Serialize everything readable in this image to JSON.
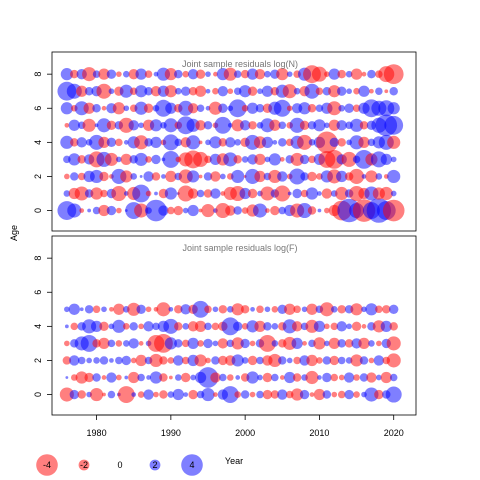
{
  "chart_data": {
    "type": "scatter",
    "subtype": "bubble",
    "shared_axes": {
      "ylabel": "Age",
      "xlabel": "Year",
      "xlim": [
        1974,
        2023
      ],
      "xticks": [
        1980,
        1990,
        2000,
        2010,
        2020
      ],
      "ylim": [
        -1.2,
        9.3
      ],
      "yticks": [
        0,
        2,
        4,
        6,
        8
      ],
      "grid": false
    },
    "colors": {
      "positive": "#0000ff",
      "negative": "#ff0000",
      "fill_opacity": 0.5
    },
    "legend": {
      "placement": "bottom-left",
      "entries": [
        {
          "label": "-4",
          "value": -4
        },
        {
          "label": "-2",
          "value": -2
        },
        {
          "label": "0",
          "value": 0
        },
        {
          "label": "2",
          "value": 2
        },
        {
          "label": "4",
          "value": 4
        }
      ]
    },
    "panels": [
      {
        "title": "Joint sample residuals log(N)",
        "x_start": 1976,
        "ages": [
          0,
          1,
          2,
          3,
          4,
          5,
          6,
          7,
          8
        ],
        "residuals_by_age": {
          "0": [
            2,
            1.5,
            -0.5,
            0.4,
            0.8,
            -1.2,
            1.0,
            -0.6,
            0.3,
            1.8,
            -1.5,
            0.7,
            2.3,
            1.1,
            -0.8,
            -1.0,
            0.6,
            1.2,
            -0.4,
            -1.4,
            0.5,
            -1.6,
            -1.1,
            0.9,
            -0.7,
            -1.3,
            1.5,
            -0.5,
            -1.0,
            0.8,
            1.2,
            -1.5,
            1.6,
            -0.9,
            0.4,
            -0.6,
            -1.2,
            -2.1,
            2.5,
            1.6,
            -2.4,
            1.8,
            2.6,
            2.0,
            -2.3
          ],
          "1": [
            0.7,
            -1.2,
            -1.5,
            0.9,
            -1.3,
            -0.8,
            1.0,
            -1.6,
            0.5,
            -1.4,
            1.9,
            -0.6,
            0.4,
            -1.0,
            1.3,
            0.3,
            -1.7,
            -1.1,
            0.8,
            -0.9,
            1.1,
            -0.5,
            -1.4,
            -1.6,
            1.2,
            -1.0,
            0.6,
            -1.5,
            0.9,
            -1.7,
            0.4,
            1.0,
            -0.8,
            1.3,
            0.5,
            -1.1,
            0.7,
            -1.4,
            0.9,
            -1.6,
            -1.2,
            1.5,
            -1.3,
            -1.4,
            0.6
          ],
          "2": [
            -0.6,
            0.9,
            -0.8,
            1.2,
            1.4,
            -1.0,
            -0.5,
            1.6,
            -1.3,
            0.7,
            0.3,
            1.1,
            -0.9,
            0.5,
            -1.2,
            0.8,
            -1.5,
            1.3,
            -0.4,
            0.9,
            -1.1,
            0.6,
            -0.7,
            1.4,
            -0.3,
            1.6,
            -1.2,
            0.8,
            -1.4,
            1.1,
            -0.6,
            1.7,
            0.9,
            -1.0,
            -0.7,
            1.3,
            -1.5,
            1.2,
            -0.9,
            -1.6,
            0.5,
            -1.3,
            0.7,
            -0.5,
            1.4
          ],
          "3": [
            0.8,
            1.3,
            -0.9,
            1.1,
            -1.7,
            1.6,
            -1.4,
            0.6,
            -1.2,
            0.9,
            1.4,
            -0.7,
            1.0,
            0.4,
            1.8,
            -0.6,
            -1.5,
            -1.9,
            -1.6,
            -0.8,
            1.2,
            -1.3,
            1.5,
            -0.9,
            0.7,
            1.1,
            -1.2,
            0.6,
            1.3,
            -0.5,
            0.9,
            -1.4,
            1.0,
            -0.8,
            1.2,
            -1.8,
            -2.0,
            1.1,
            -1.6,
            0.8,
            2.0,
            -1.3,
            1.7,
            1.2,
            0.6
          ],
          "4": [
            1.4,
            -0.9,
            1.1,
            0.7,
            1.6,
            -1.2,
            1.0,
            -0.8,
            0.5,
            1.3,
            -1.5,
            0.9,
            1.2,
            -0.6,
            1.7,
            0.8,
            -1.1,
            1.5,
            -0.4,
            0.6,
            1.3,
            -0.9,
            1.1,
            0.7,
            -1.0,
            1.6,
            -1.3,
            1.2,
            0.5,
            0.9,
            -0.8,
            1.4,
            -1.6,
            0.7,
            1.2,
            -2.3,
            1.0,
            -0.9,
            0.6,
            1.5,
            -1.2,
            0.8,
            1.3,
            1.6,
            -1.4
          ],
          "5": [
            -0.5,
            1.2,
            0.8,
            -1.4,
            0.4,
            1.5,
            -1.0,
            0.9,
            -1.6,
            1.1,
            0.6,
            -1.2,
            1.3,
            0.7,
            1.5,
            -0.8,
            1.9,
            1.4,
            -1.1,
            0.9,
            -0.6,
            1.8,
            0.5,
            -1.3,
            1.1,
            -0.9,
            0.7,
            1.5,
            -1.2,
            0.8,
            -0.7,
            1.6,
            -1.0,
            0.9,
            1.3,
            0.6,
            -1.2,
            1.1,
            0.8,
            1.4,
            -0.9,
            1.0,
            1.6,
            2.3,
            2.0
          ],
          "6": [
            1.3,
            -0.7,
            1.5,
            -1.2,
            0.9,
            -0.5,
            1.1,
            -1.3,
            0.6,
            -0.8,
            1.4,
            -1.0,
            0.7,
            1.8,
            1.2,
            -0.9,
            1.6,
            -1.1,
            0.8,
            0.5,
            -1.4,
            1.0,
            0.6,
            1.9,
            -0.7,
            1.2,
            0.9,
            -1.0,
            1.4,
            1.8,
            -0.6,
            1.1,
            1.3,
            -0.9,
            0.8,
            1.2,
            -1.5,
            0.7,
            1.0,
            -0.8,
            1.2,
            1.9,
            1.6,
            1.7,
            1.3
          ],
          "7": [
            2.0,
            1.6,
            -1.2,
            0.9,
            1.1,
            -1.6,
            0.6,
            -1.0,
            1.4,
            -0.8,
            1.3,
            0.9,
            -1.1,
            1.2,
            -1.3,
            0.7,
            1.0,
            -0.9,
            -1.2,
            0.5,
            -0.7,
            1.1,
            -0.6,
            0.8,
            1.3,
            -1.0,
            0.6,
            1.2,
            -0.9,
            1.4,
            -1.5,
            0.7,
            -1.1,
            1.6,
            -0.8,
            0.9,
            -1.3,
            1.0,
            0.6,
            -0.7,
            1.2,
            -0.5,
            0.8,
            -0.4,
            0.9
          ],
          "8": [
            1.3,
            -0.9,
            1.1,
            -1.5,
            0.8,
            -1.2,
            1.0,
            -0.6,
            0.7,
            -1.1,
            1.2,
            -0.8,
            0.5,
            1.4,
            -1.3,
            0.9,
            -0.7,
            1.1,
            -1.0,
            0.6,
            -0.5,
            1.3,
            -1.4,
            0.8,
            -0.9,
            1.2,
            -1.1,
            0.7,
            1.0,
            -1.3,
            0.6,
            -0.8,
            1.4,
            -1.9,
            -1.6,
            -0.6,
            1.2,
            -0.9,
            0.7,
            -1.2,
            -0.5,
            0.9,
            -0.8,
            -1.7,
            -2.1
          ]
        }
      },
      {
        "title": "Joint sample residuals log(F)",
        "x_start": 1976,
        "ages": [
          0,
          1,
          2,
          3,
          4,
          5
        ],
        "residuals_by_age": {
          "0": [
            -1.5,
            1.0,
            -0.9,
            0.6,
            -1.4,
            -0.4,
            0.8,
            0.4,
            -1.8,
            0.5,
            -0.7,
            1.1,
            -0.6,
            -0.9,
            0.7,
            1.2,
            0.5,
            -1.0,
            0.8,
            1.4,
            -0.5,
            1.1,
            1.8,
            -0.7,
            0.9,
            -0.6,
            0.8,
            -1.0,
            -0.9,
            1.1,
            -0.8,
            -1.3,
            1.0,
            -0.5,
            -1.2,
            0.9,
            -0.6,
            -0.8,
            1.0,
            -0.7,
            0.6,
            1.5,
            -1.0,
            0.9,
            1.7
          ],
          "1": [
            0.3,
            -0.7,
            -1.3,
            -1.0,
            0.9,
            -0.5,
            1.1,
            -0.6,
            0.4,
            -1.2,
            0.8,
            0.5,
            1.3,
            -0.9,
            -0.4,
            0.7,
            -1.0,
            0.6,
            1.2,
            2.2,
            -1.1,
            0.8,
            -0.7,
            0.5,
            -0.9,
            1.3,
            0.6,
            -1.0,
            0.8,
            -0.5,
            1.2,
            -0.9,
            0.7,
            -1.4,
            0.5,
            1.0,
            -0.8,
            -0.6,
            1.1,
            -0.7,
            0.9,
            -1.1,
            0.6,
            -1.2,
            0.8
          ],
          "2": [
            -0.9,
            1.1,
            0.8,
            0.6,
            0.7,
            0.9,
            0.5,
            0.8,
            1.0,
            -0.6,
            -1.2,
            0.8,
            -1.4,
            -0.9,
            -0.7,
            1.1,
            -0.8,
            1.2,
            -1.3,
            -0.6,
            0.9,
            -1.0,
            -1.1,
            1.3,
            0.7,
            -1.0,
            0.8,
            -1.1,
            -1.4,
            0.9,
            0.6,
            -0.8,
            1.1,
            -1.2,
            -0.7,
            0.9,
            -1.0,
            0.8,
            0.7,
            -1.3,
            0.9,
            -0.6,
            1.1,
            -0.8,
            -1.5
          ],
          "3": [
            -0.6,
            0.9,
            1.5,
            1.8,
            -0.9,
            -1.2,
            0.8,
            -0.7,
            0.7,
            1.1,
            -0.5,
            0.6,
            -1.8,
            -2.0,
            1.3,
            0.9,
            -0.8,
            1.2,
            -0.7,
            1.0,
            0.6,
            -1.1,
            0.8,
            -1.3,
            1.0,
            -0.6,
            0.9,
            -1.8,
            0.7,
            -0.9,
            -1.4,
            1.2,
            -0.5,
            0.8,
            -1.3,
            0.6,
            -1.2,
            0.9,
            -0.9,
            1.1,
            -1.2,
            0.7,
            -0.6,
            1.0,
            -1.5
          ],
          "4": [
            0.4,
            -0.8,
            0.9,
            1.5,
            1.2,
            -1.0,
            0.6,
            1.4,
            -0.7,
            0.9,
            -0.6,
            1.1,
            0.8,
            1.2,
            1.6,
            -0.9,
            0.7,
            -1.1,
            -1.2,
            0.8,
            -0.8,
            -1.0,
            1.9,
            1.0,
            -0.7,
            1.3,
            -1.2,
            0.9,
            0.7,
            -0.9,
            1.5,
            -1.1,
            0.8,
            -1.4,
            1.2,
            -0.6,
            -0.8,
            1.1,
            0.6,
            -1.0,
            -0.5,
            0.9,
            -1.3,
            1.2,
            -0.9
          ],
          "5": [
            0.6,
            1.2,
            0.4,
            0.9,
            -0.8,
            0.6,
            -0.5,
            -1.2,
            0.7,
            -1.4,
            1.0,
            -0.6,
            -0.5,
            -1.5,
            0.5,
            -0.9,
            1.1,
            -1.0,
            1.8,
            -0.8,
            0.6,
            -0.9,
            0.7,
            -1.3,
            -0.9,
            0.5,
            -0.8,
            0.6,
            -0.7,
            1.0,
            -1.2,
            -0.8,
            0.6,
            -1.2,
            0.8,
            -1.5,
            0.7,
            -0.9,
            0.9,
            -1.3,
            0.6,
            1.3,
            -0.8,
            -0.9,
            1.0
          ]
        }
      }
    ]
  }
}
